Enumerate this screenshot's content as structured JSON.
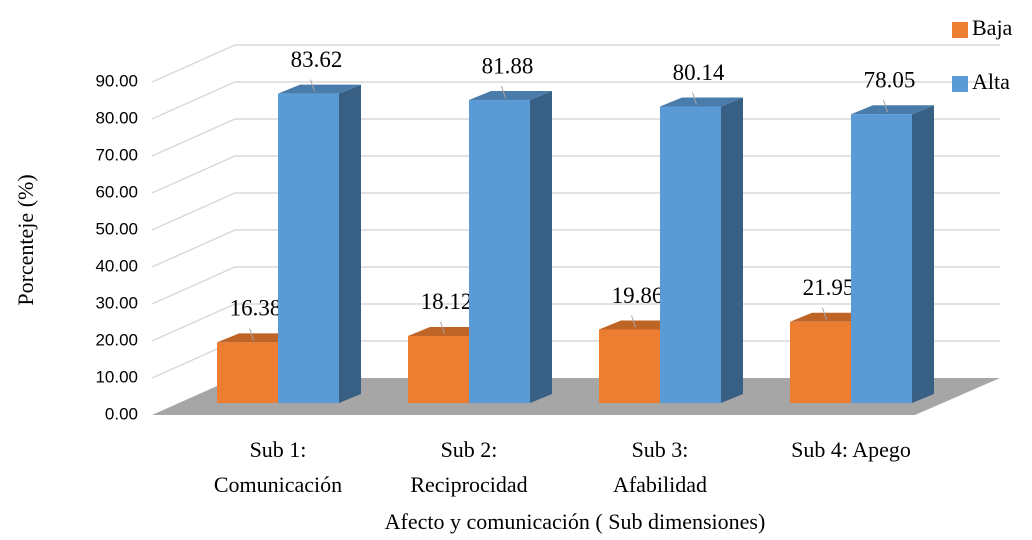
{
  "chart_data": {
    "type": "bar3d",
    "x_label": "Afecto y comunicación ( Sub dimensiones)",
    "y_label": "Porcenteje (%)",
    "categories": [
      "Sub 1: Comunicación",
      "Sub 2: Reciprocidad",
      "Sub 3: Afabilidad",
      "Sub 4: Apego"
    ],
    "series": [
      {
        "name": "Baja",
        "color": "#ed7d31",
        "values": [
          16.38,
          18.12,
          19.86,
          21.95
        ]
      },
      {
        "name": "Alta",
        "color": "#5b9bd5",
        "values": [
          83.62,
          81.88,
          80.14,
          78.05
        ]
      }
    ],
    "ylim": [
      0,
      90
    ],
    "yticks": [
      {
        "value": 0,
        "label": "0.00"
      },
      {
        "value": 10,
        "label": "10.00"
      },
      {
        "value": 20,
        "label": "20.00"
      },
      {
        "value": 30,
        "label": "30.00"
      },
      {
        "value": 40,
        "label": "40.00"
      },
      {
        "value": 50,
        "label": "50.00"
      },
      {
        "value": 60,
        "label": "60.00"
      },
      {
        "value": 70,
        "label": "70.00"
      },
      {
        "value": 80,
        "label": "80.00"
      },
      {
        "value": 90,
        "label": "90.00"
      }
    ],
    "grid": true,
    "legend": "top-right"
  }
}
